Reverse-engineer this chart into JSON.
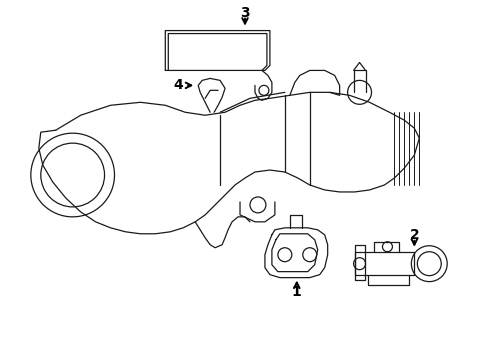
{
  "bg_color": "#ffffff",
  "line_color": "#1a1a1a",
  "lw": 0.9,
  "callout_color": "#000000",
  "callout_fontsize": 10,
  "callout_fontweight": "bold"
}
